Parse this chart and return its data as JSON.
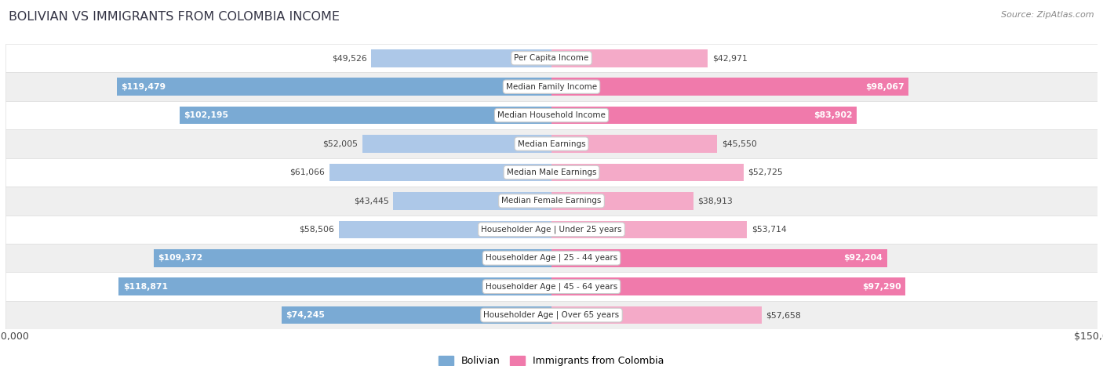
{
  "title": "BOLIVIAN VS IMMIGRANTS FROM COLOMBIA INCOME",
  "source": "Source: ZipAtlas.com",
  "categories": [
    "Per Capita Income",
    "Median Family Income",
    "Median Household Income",
    "Median Earnings",
    "Median Male Earnings",
    "Median Female Earnings",
    "Householder Age | Under 25 years",
    "Householder Age | 25 - 44 years",
    "Householder Age | 45 - 64 years",
    "Householder Age | Over 65 years"
  ],
  "bolivian": [
    49526,
    119479,
    102195,
    52005,
    61066,
    43445,
    58506,
    109372,
    118871,
    74245
  ],
  "colombia": [
    42971,
    98067,
    83902,
    45550,
    52725,
    38913,
    53714,
    92204,
    97290,
    57658
  ],
  "bolivian_labels": [
    "$49,526",
    "$119,479",
    "$102,195",
    "$52,005",
    "$61,066",
    "$43,445",
    "$58,506",
    "$109,372",
    "$118,871",
    "$74,245"
  ],
  "colombia_labels": [
    "$42,971",
    "$98,067",
    "$83,902",
    "$45,550",
    "$52,725",
    "$38,913",
    "$53,714",
    "$92,204",
    "$97,290",
    "$57,658"
  ],
  "bolivian_color": "#7aaad4",
  "colombia_color": "#f07aab",
  "bolivian_color_light": "#adc8e8",
  "colombia_color_light": "#f4aac8",
  "max_val": 150000,
  "row_bg_white": "#ffffff",
  "row_bg_gray": "#efefef",
  "row_border": "#dddddd",
  "label_threshold": 67500,
  "title_color": "#333344",
  "source_color": "#888888"
}
